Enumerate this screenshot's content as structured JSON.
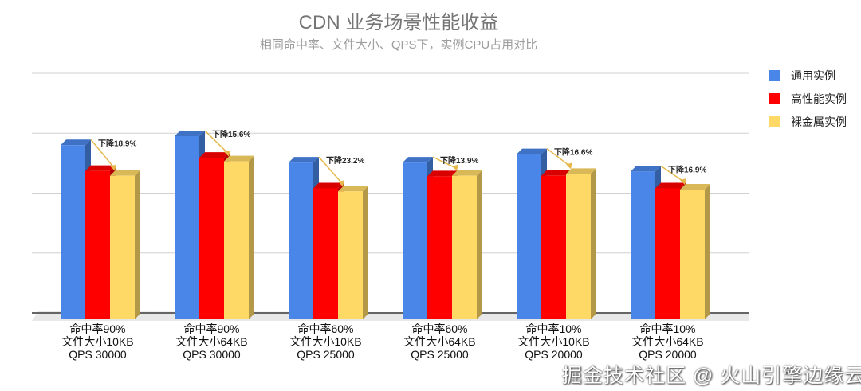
{
  "chart_data": {
    "type": "bar",
    "title": "CDN 业务场景性能收益",
    "subtitle": "相同命中率、文件大小、QPS下，实例CPU占用对比",
    "categories": [
      [
        "命中率90%",
        "文件大小10KB",
        "QPS 30000"
      ],
      [
        "命中率90%",
        "文件大小64KB",
        "QPS 30000"
      ],
      [
        "命中率60%",
        "文件大小10KB",
        "QPS 25000"
      ],
      [
        "命中率60%",
        "文件大小64KB",
        "QPS 25000"
      ],
      [
        "命中率10%",
        "文件大小10KB",
        "QPS 20000"
      ],
      [
        "命中率10%",
        "文件大小64KB",
        "QPS 20000"
      ]
    ],
    "series": [
      {
        "name": "通用实例",
        "color": "#4a86e8",
        "values": [
          2.8,
          2.95,
          2.51,
          2.51,
          2.65,
          2.36
        ]
      },
      {
        "name": "高性能实例",
        "color": "#ff0000",
        "values": [
          2.37,
          2.59,
          2.08,
          2.28,
          2.29,
          2.08
        ]
      },
      {
        "name": "裸金属实例",
        "color": "#ffd966",
        "values": [
          2.29,
          2.53,
          2.03,
          2.29,
          2.32,
          2.06
        ]
      }
    ],
    "annotations": [
      "下降18.9%",
      "下降15.6%",
      "下降23.2%",
      "下降13.9%",
      "下降16.6%",
      "下降16.9%"
    ],
    "ylim": [
      0,
      4
    ],
    "grid": true,
    "legend": "right",
    "style": "3d"
  },
  "watermark": "掘金技术社区 @ 火山引擎边缘云"
}
